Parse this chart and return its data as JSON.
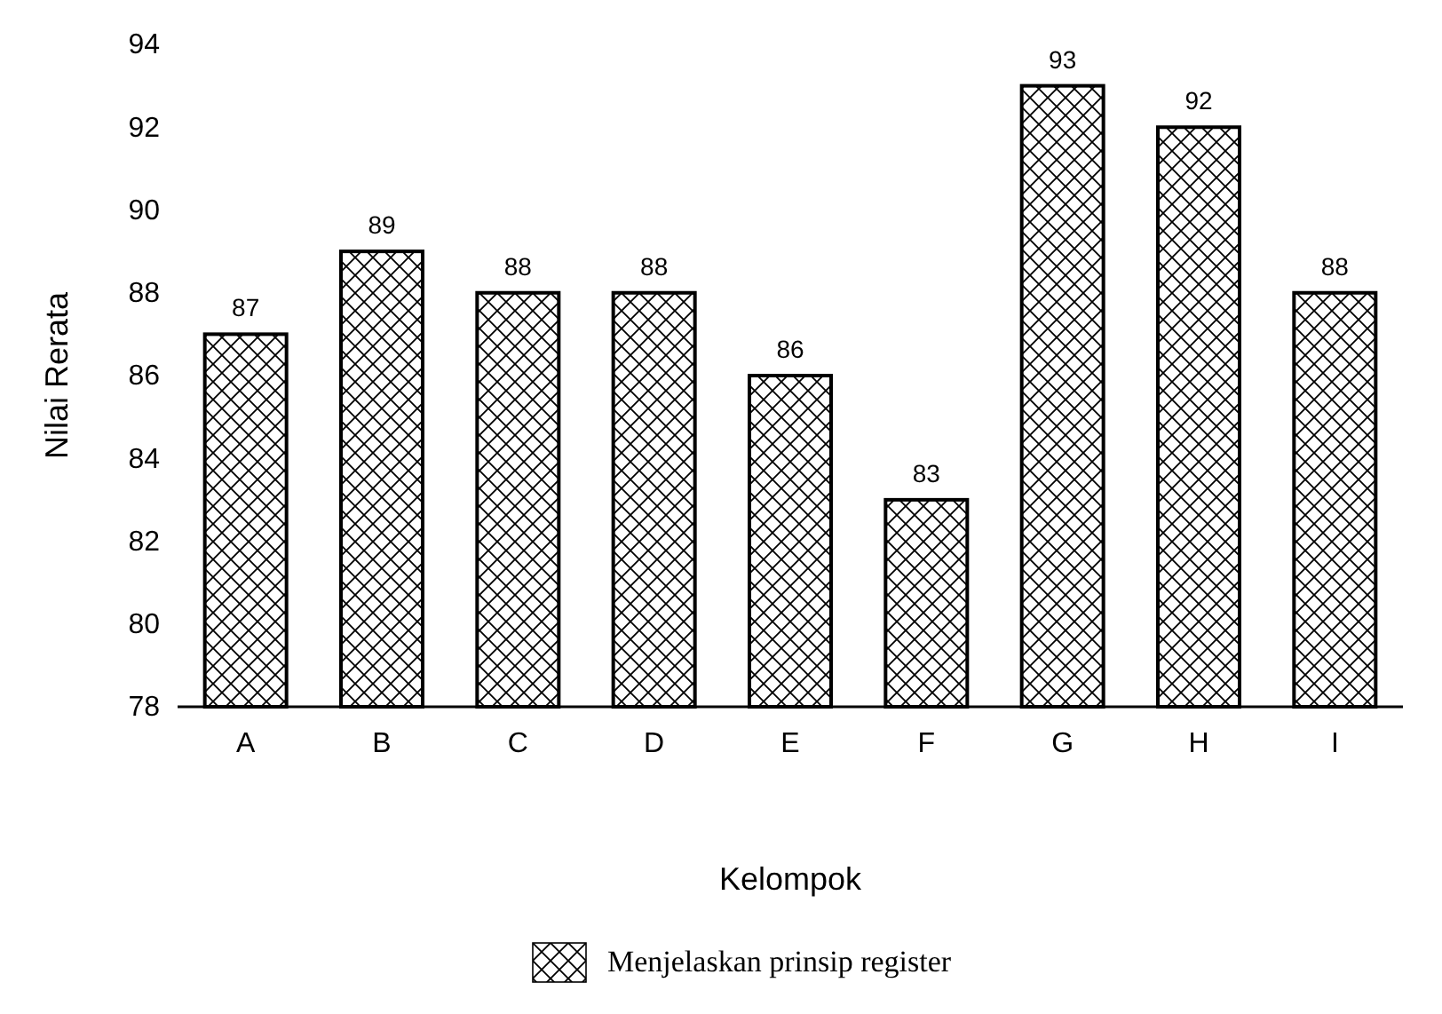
{
  "chart_data": {
    "type": "bar",
    "xlabel": "Kelompok",
    "ylabel": "Nilai Rerata",
    "categories": [
      "A",
      "B",
      "C",
      "D",
      "E",
      "F",
      "G",
      "H",
      "I"
    ],
    "series": [
      {
        "name": "Menjelaskan prinsip register",
        "color": "#000000",
        "values": [
          87,
          89,
          88,
          88,
          86,
          83,
          93,
          92,
          88
        ]
      }
    ],
    "ylim": [
      78,
      94
    ],
    "yticks": [
      78,
      80,
      82,
      84,
      86,
      88,
      90,
      92,
      94
    ],
    "data_labels": true,
    "grid": false,
    "legend": "bottom"
  }
}
